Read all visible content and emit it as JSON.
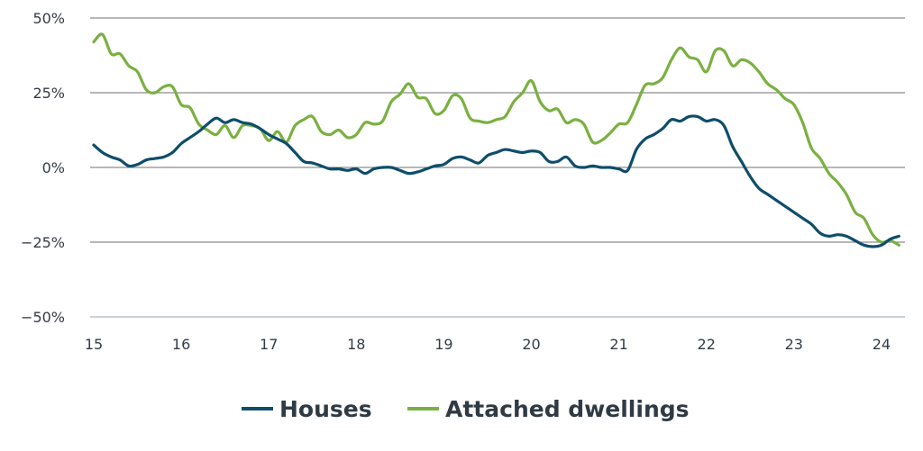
{
  "chart_data": {
    "type": "line",
    "xlim": [
      15,
      24.2
    ],
    "ylim": [
      -50,
      50
    ],
    "x_ticks": [
      15,
      16,
      17,
      18,
      19,
      20,
      21,
      22,
      23,
      24
    ],
    "x_tick_labels": [
      "15",
      "16",
      "17",
      "18",
      "19",
      "20",
      "21",
      "22",
      "23",
      "24"
    ],
    "y_ticks": [
      50,
      25,
      0,
      -25,
      -50
    ],
    "y_tick_labels": [
      "50%",
      "25%",
      "0%",
      "−25%",
      "−50%"
    ],
    "grid": true,
    "legend_position": "bottom",
    "series": [
      {
        "name": "Houses",
        "color": "#0e4d6b",
        "points": [
          [
            15.0,
            7.5
          ],
          [
            15.1,
            5
          ],
          [
            15.2,
            3.5
          ],
          [
            15.3,
            2.5
          ],
          [
            15.4,
            0.5
          ],
          [
            15.5,
            1
          ],
          [
            15.6,
            2.5
          ],
          [
            15.7,
            3
          ],
          [
            15.8,
            3.5
          ],
          [
            15.9,
            5
          ],
          [
            16.0,
            8
          ],
          [
            16.1,
            10
          ],
          [
            16.2,
            12
          ],
          [
            16.3,
            14.5
          ],
          [
            16.4,
            16.5
          ],
          [
            16.5,
            15
          ],
          [
            16.6,
            16
          ],
          [
            16.7,
            15
          ],
          [
            16.8,
            14.5
          ],
          [
            16.9,
            13
          ],
          [
            17.0,
            11
          ],
          [
            17.1,
            9.5
          ],
          [
            17.2,
            8
          ],
          [
            17.3,
            5
          ],
          [
            17.4,
            2
          ],
          [
            17.5,
            1.5
          ],
          [
            17.6,
            0.5
          ],
          [
            17.7,
            -0.5
          ],
          [
            17.8,
            -0.5
          ],
          [
            17.9,
            -1
          ],
          [
            18.0,
            -0.5
          ],
          [
            18.1,
            -2
          ],
          [
            18.2,
            -0.5
          ],
          [
            18.3,
            0
          ],
          [
            18.4,
            0
          ],
          [
            18.5,
            -1
          ],
          [
            18.6,
            -2
          ],
          [
            18.7,
            -1.5
          ],
          [
            18.8,
            -0.5
          ],
          [
            18.9,
            0.5
          ],
          [
            19.0,
            1
          ],
          [
            19.1,
            3
          ],
          [
            19.2,
            3.5
          ],
          [
            19.3,
            2.5
          ],
          [
            19.4,
            1.5
          ],
          [
            19.5,
            4
          ],
          [
            19.6,
            5
          ],
          [
            19.7,
            6
          ],
          [
            19.8,
            5.5
          ],
          [
            19.9,
            5
          ],
          [
            20.0,
            5.5
          ],
          [
            20.1,
            5
          ],
          [
            20.2,
            2
          ],
          [
            20.3,
            2
          ],
          [
            20.4,
            3.5
          ],
          [
            20.5,
            0.5
          ],
          [
            20.6,
            0
          ],
          [
            20.7,
            0.5
          ],
          [
            20.8,
            0
          ],
          [
            20.9,
            0
          ],
          [
            21.0,
            -0.5
          ],
          [
            21.1,
            -1
          ],
          [
            21.2,
            6
          ],
          [
            21.3,
            9.5
          ],
          [
            21.4,
            11
          ],
          [
            21.5,
            13
          ],
          [
            21.6,
            16
          ],
          [
            21.7,
            15.5
          ],
          [
            21.8,
            17
          ],
          [
            21.9,
            17
          ],
          [
            22.0,
            15.5
          ],
          [
            22.1,
            16
          ],
          [
            22.2,
            14
          ],
          [
            22.3,
            7
          ],
          [
            22.4,
            2
          ],
          [
            22.5,
            -3
          ],
          [
            22.6,
            -7
          ],
          [
            22.7,
            -9
          ],
          [
            22.8,
            -11
          ],
          [
            22.9,
            -13
          ],
          [
            23.0,
            -15
          ],
          [
            23.1,
            -17
          ],
          [
            23.2,
            -19
          ],
          [
            23.3,
            -22
          ],
          [
            23.4,
            -23
          ],
          [
            23.5,
            -22.5
          ],
          [
            23.6,
            -23
          ],
          [
            23.7,
            -24.5
          ],
          [
            23.8,
            -26
          ],
          [
            23.9,
            -26.5
          ],
          [
            24.0,
            -26
          ],
          [
            24.1,
            -24
          ],
          [
            24.2,
            -23
          ]
        ]
      },
      {
        "name": "Attached dwellings",
        "color": "#7ab041",
        "points": [
          [
            15.0,
            42
          ],
          [
            15.1,
            44.5
          ],
          [
            15.2,
            38
          ],
          [
            15.3,
            38
          ],
          [
            15.4,
            34
          ],
          [
            15.5,
            32
          ],
          [
            15.6,
            26
          ],
          [
            15.7,
            25
          ],
          [
            15.8,
            27
          ],
          [
            15.9,
            27
          ],
          [
            16.0,
            21
          ],
          [
            16.1,
            20
          ],
          [
            16.2,
            14.5
          ],
          [
            16.3,
            12.5
          ],
          [
            16.4,
            11
          ],
          [
            16.5,
            14
          ],
          [
            16.6,
            10
          ],
          [
            16.7,
            14
          ],
          [
            16.8,
            14
          ],
          [
            16.9,
            13
          ],
          [
            17.0,
            9
          ],
          [
            17.1,
            12
          ],
          [
            17.2,
            8.5
          ],
          [
            17.3,
            14
          ],
          [
            17.4,
            16
          ],
          [
            17.5,
            17
          ],
          [
            17.6,
            12
          ],
          [
            17.7,
            11
          ],
          [
            17.8,
            12.5
          ],
          [
            17.9,
            10
          ],
          [
            18.0,
            11
          ],
          [
            18.1,
            15
          ],
          [
            18.2,
            14.5
          ],
          [
            18.3,
            15.5
          ],
          [
            18.4,
            22
          ],
          [
            18.5,
            24.5
          ],
          [
            18.6,
            28
          ],
          [
            18.7,
            23.5
          ],
          [
            18.8,
            23
          ],
          [
            18.9,
            18
          ],
          [
            19.0,
            19
          ],
          [
            19.1,
            24
          ],
          [
            19.2,
            23
          ],
          [
            19.3,
            16.5
          ],
          [
            19.4,
            15.5
          ],
          [
            19.5,
            15
          ],
          [
            19.6,
            16
          ],
          [
            19.7,
            17
          ],
          [
            19.8,
            22
          ],
          [
            19.9,
            25
          ],
          [
            20.0,
            29
          ],
          [
            20.1,
            22
          ],
          [
            20.2,
            19
          ],
          [
            20.3,
            19.5
          ],
          [
            20.4,
            15
          ],
          [
            20.5,
            16
          ],
          [
            20.6,
            14.5
          ],
          [
            20.7,
            8.5
          ],
          [
            20.8,
            9
          ],
          [
            20.9,
            11.5
          ],
          [
            21.0,
            14.5
          ],
          [
            21.1,
            15
          ],
          [
            21.2,
            21
          ],
          [
            21.3,
            27.5
          ],
          [
            21.4,
            28
          ],
          [
            21.5,
            30
          ],
          [
            21.6,
            36
          ],
          [
            21.7,
            40
          ],
          [
            21.8,
            37
          ],
          [
            21.9,
            36
          ],
          [
            22.0,
            32
          ],
          [
            22.1,
            39
          ],
          [
            22.2,
            39
          ],
          [
            22.3,
            34
          ],
          [
            22.4,
            36
          ],
          [
            22.5,
            35
          ],
          [
            22.6,
            32
          ],
          [
            22.7,
            28
          ],
          [
            22.8,
            26
          ],
          [
            22.9,
            23
          ],
          [
            23.0,
            21
          ],
          [
            23.1,
            15
          ],
          [
            23.2,
            6.5
          ],
          [
            23.3,
            3
          ],
          [
            23.4,
            -2
          ],
          [
            23.5,
            -5
          ],
          [
            23.6,
            -9
          ],
          [
            23.7,
            -15
          ],
          [
            23.8,
            -17
          ],
          [
            23.9,
            -22.5
          ],
          [
            24.0,
            -25
          ],
          [
            24.1,
            -24.5
          ],
          [
            24.2,
            -26
          ]
        ]
      }
    ]
  }
}
